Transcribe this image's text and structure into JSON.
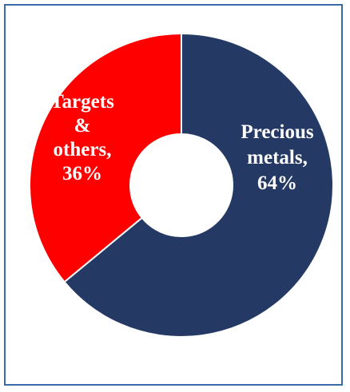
{
  "chart_data": {
    "type": "pie",
    "donut": true,
    "slices": [
      {
        "label_lines": [
          "Precious",
          "metals,",
          "64%"
        ],
        "value": 64,
        "color": "#243a64"
      },
      {
        "label_lines": [
          "Targets",
          "&",
          "others,",
          "36%"
        ],
        "value": 36,
        "color": "#ff0000"
      }
    ],
    "title": "",
    "legend": "none"
  },
  "colors": {
    "frame_border": "#3a6aa8",
    "background": "#ffffff",
    "slice_separator": "#ffffff"
  }
}
